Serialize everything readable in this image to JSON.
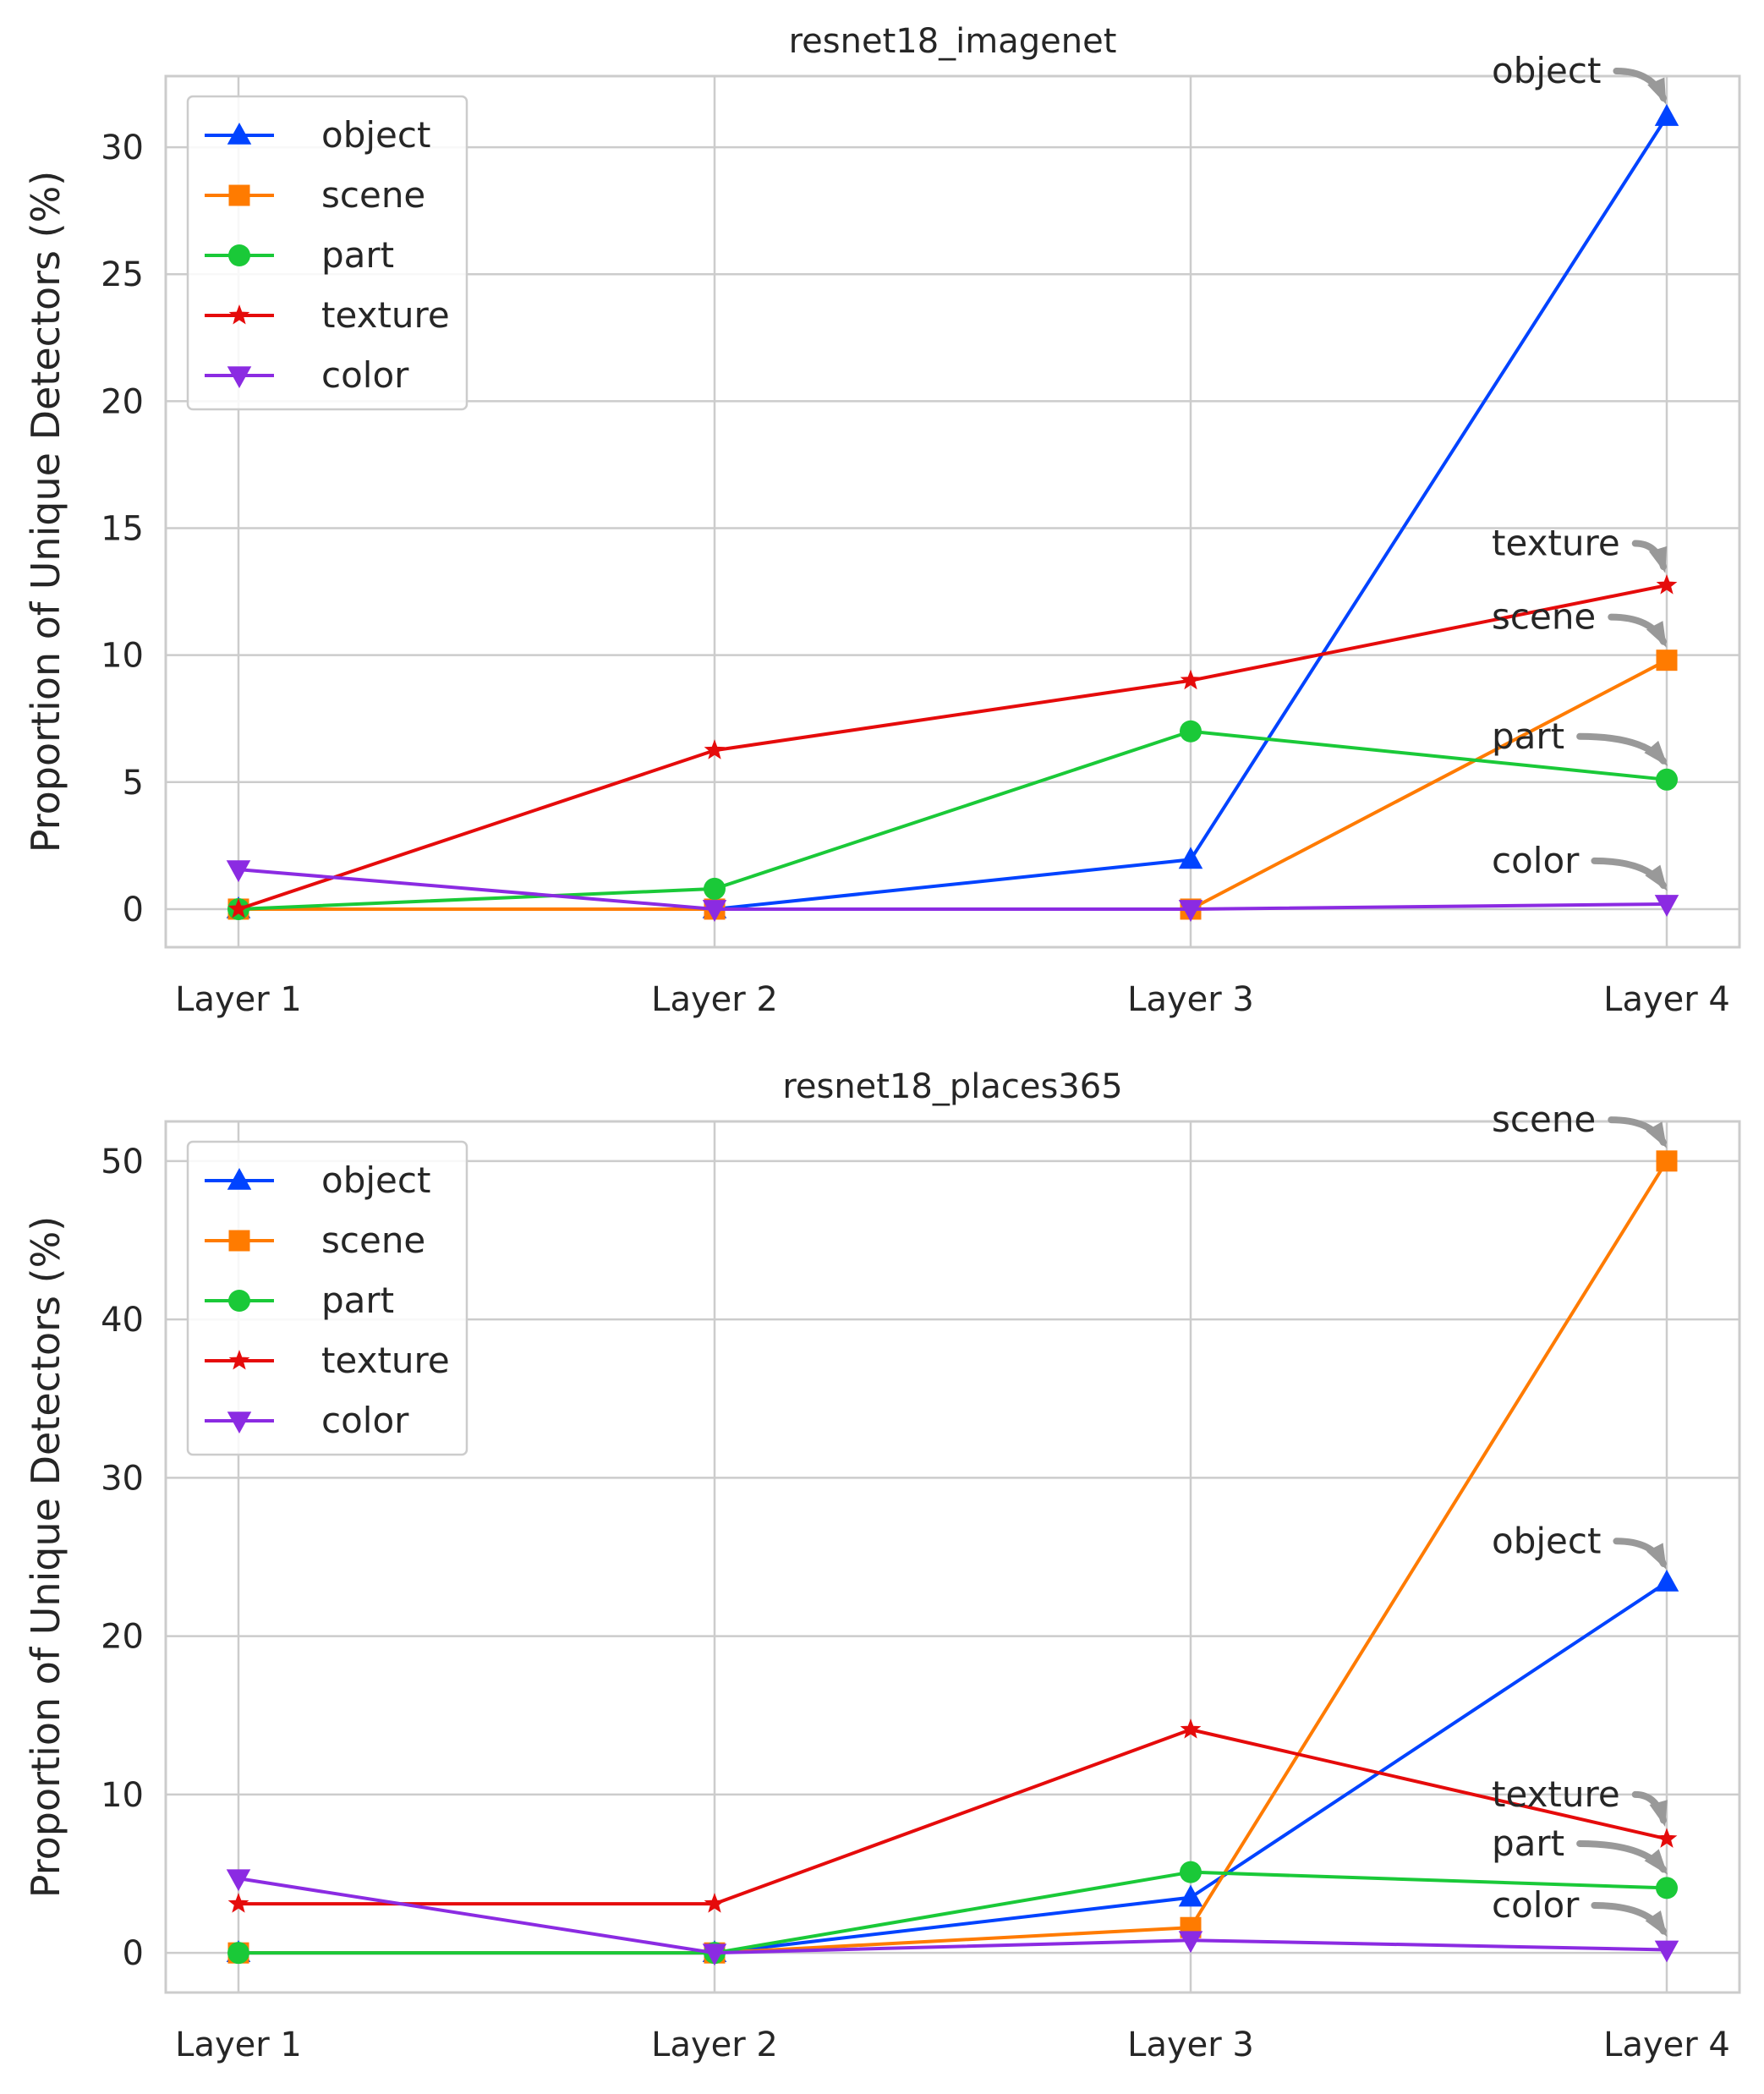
{
  "chart_data": [
    {
      "type": "line",
      "title": "resnet18_imagenet",
      "xlabel": "",
      "ylabel": "Proportion of Unique Detectors (%)",
      "categories": [
        "Layer 1",
        "Layer 2",
        "Layer 3",
        "Layer 4"
      ],
      "ylim": [
        -1.5,
        32.8
      ],
      "yticks": [
        0,
        5,
        10,
        15,
        20,
        25,
        30
      ],
      "grid": true,
      "legend_position": "top-left",
      "series": [
        {
          "name": "object",
          "values": [
            0,
            0,
            1.95,
            31.2
          ],
          "color": "#0043ff",
          "marker": "triangle-up"
        },
        {
          "name": "scene",
          "values": [
            0,
            0,
            0,
            9.8
          ],
          "color": "#ff7b00",
          "marker": "square"
        },
        {
          "name": "part",
          "values": [
            0,
            0.8,
            7.0,
            5.1
          ],
          "color": "#1ac938",
          "marker": "circle"
        },
        {
          "name": "texture",
          "values": [
            0,
            6.25,
            9.0,
            12.75
          ],
          "color": "#e50b0b",
          "marker": "star"
        },
        {
          "name": "color",
          "values": [
            1.56,
            0,
            0,
            0.2
          ],
          "color": "#8b2be2",
          "marker": "triangle-down"
        }
      ],
      "annotations": [
        {
          "text": "object",
          "series": "object",
          "label_y": 33.0
        },
        {
          "text": "texture",
          "series": "texture",
          "label_y": 14.4
        },
        {
          "text": "scene",
          "series": "scene",
          "label_y": 11.5
        },
        {
          "text": "part",
          "series": "part",
          "label_y": 6.8
        },
        {
          "text": "color",
          "series": "color",
          "label_y": 1.9
        }
      ]
    },
    {
      "type": "line",
      "title": "resnet18_places365",
      "xlabel": "",
      "ylabel": "Proportion of Unique Detectors (%)",
      "categories": [
        "Layer 1",
        "Layer 2",
        "Layer 3",
        "Layer 4"
      ],
      "ylim": [
        -2.5,
        52.5
      ],
      "yticks": [
        0,
        10,
        20,
        30,
        40,
        50
      ],
      "grid": true,
      "legend_position": "top-left",
      "series": [
        {
          "name": "object",
          "values": [
            0,
            0,
            3.5,
            23.4
          ],
          "color": "#0043ff",
          "marker": "triangle-up"
        },
        {
          "name": "scene",
          "values": [
            0,
            0,
            1.6,
            50.0
          ],
          "color": "#ff7b00",
          "marker": "square"
        },
        {
          "name": "part",
          "values": [
            0,
            0,
            5.1,
            4.1
          ],
          "color": "#1ac938",
          "marker": "circle"
        },
        {
          "name": "texture",
          "values": [
            3.1,
            3.1,
            14.1,
            7.2
          ],
          "color": "#e50b0b",
          "marker": "star"
        },
        {
          "name": "color",
          "values": [
            4.7,
            0,
            0.8,
            0.2
          ],
          "color": "#8b2be2",
          "marker": "triangle-down"
        }
      ],
      "annotations": [
        {
          "text": "scene",
          "series": "scene",
          "label_y": 52.6
        },
        {
          "text": "object",
          "series": "object",
          "label_y": 26.0
        },
        {
          "text": "texture",
          "series": "texture",
          "label_y": 10.0
        },
        {
          "text": "part",
          "series": "part",
          "label_y": 6.9
        },
        {
          "text": "color",
          "series": "color",
          "label_y": 3.0
        }
      ]
    }
  ]
}
